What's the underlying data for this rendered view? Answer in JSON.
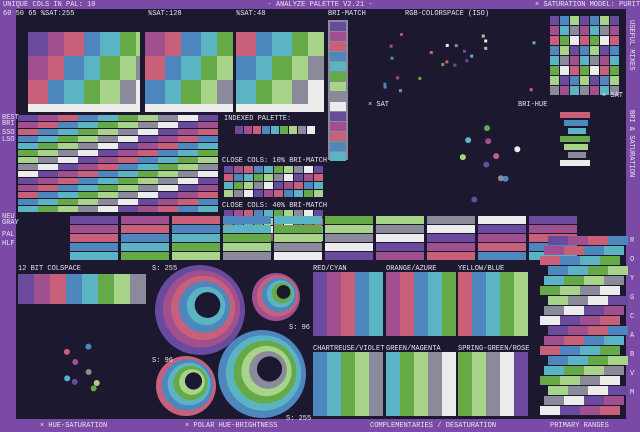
{
  "header": {
    "title": "- ANALYZE PALETTE V2.21 -",
    "saturation_model": "× SATURATION MODEL: PURIT",
    "unique_cols": "UNIQUE COLS IN PAL: 10",
    "row2": [
      "60 50 65 %SAT:255",
      "%SAT:128",
      "%SAT:48",
      "BRI-MATCH",
      "RGB-COLORSPACE (ISO)"
    ]
  },
  "panel_labels": [
    "INDEXED PALETTE:",
    "CLOSE COLS: 10% BRI-MATCH",
    "CLOSE COLS: 40% BRI-MATCH",
    "× SAT",
    "BRI-HUE",
    "× SAT",
    "12 BIT COLSPACE",
    "S: 255",
    "S: 96",
    "S: 96",
    "S: 255"
  ],
  "side_labels": [
    "BEST",
    "BRI",
    "SSO",
    "LSO",
    "NEU",
    "GRAY",
    "PAL",
    "HLF"
  ],
  "complementaries": [
    "RED/CYAN",
    "ORANGE/AZURE",
    "YELLOW/BLUE",
    "CHARTREUSE/VIOLET",
    "GREEN/MAGENTA",
    "SPRING-GREEN/ROSE"
  ],
  "right_labels": [
    "USEFUL MIXES",
    "BRI & SATURATION"
  ],
  "primary_letters": [
    "R",
    "O",
    "Y",
    "G",
    "C",
    "A",
    "B",
    "V",
    "M"
  ],
  "footer": [
    "× HUE-SATURATION",
    "× POLAR HUE-BRIGHTNESS",
    "COMPLEMENTARIES / DESATURATION",
    "PRIMARY RANGES"
  ],
  "palette": [
    "#1b1830",
    "#6a4a9c",
    "#a0508e",
    "#c8607a",
    "#4e86be",
    "#5ab4c4",
    "#66aa48",
    "#a8d48a",
    "#8a8a9a",
    "#ececec"
  ]
}
